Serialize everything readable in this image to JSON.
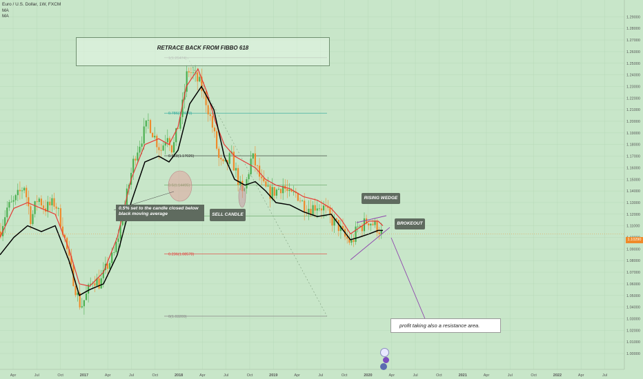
{
  "chart_data": {
    "type": "candlestick",
    "title": "Euro / U.S. Dollar, 1W, FXCM",
    "indicators": [
      "MA",
      "MA"
    ],
    "ylim": [
      0.995,
      1.297
    ],
    "y_ticks": [
      1.0,
      1.01,
      1.02,
      1.03,
      1.04,
      1.05,
      1.06,
      1.07,
      1.08,
      1.09,
      1.1,
      1.11,
      1.12,
      1.13,
      1.14,
      1.15,
      1.16,
      1.17,
      1.18,
      1.19,
      1.2,
      1.21,
      1.22,
      1.23,
      1.24,
      1.25,
      1.26,
      1.27,
      1.28,
      1.29
    ],
    "x_ticks": [
      "Apr",
      "Jul",
      "Oct",
      "2017",
      "Apr",
      "Jul",
      "Oct",
      "2018",
      "Apr",
      "Jul",
      "Oct",
      "2019",
      "Apr",
      "Jul",
      "Oct",
      "2020",
      "Apr",
      "Jul",
      "Oct",
      "2021",
      "Apr",
      "Jul",
      "Oct",
      "2022",
      "Apr",
      "Jul"
    ],
    "last_price": "1.10290",
    "price_path": [
      [
        0,
        1.105
      ],
      [
        10,
        1.125
      ],
      [
        20,
        1.13
      ],
      [
        35,
        1.145
      ],
      [
        45,
        1.115
      ],
      [
        55,
        1.135
      ],
      [
        65,
        1.125
      ],
      [
        80,
        1.13
      ],
      [
        90,
        1.11
      ],
      [
        100,
        1.08
      ],
      [
        110,
        1.055
      ],
      [
        117,
        1.04
      ],
      [
        125,
        1.05
      ],
      [
        135,
        1.065
      ],
      [
        145,
        1.06
      ],
      [
        155,
        1.075
      ],
      [
        165,
        1.085
      ],
      [
        175,
        1.11
      ],
      [
        185,
        1.14
      ],
      [
        195,
        1.17
      ],
      [
        205,
        1.185
      ],
      [
        215,
        1.2
      ],
      [
        225,
        1.185
      ],
      [
        233,
        1.175
      ],
      [
        243,
        1.19
      ],
      [
        250,
        1.175
      ],
      [
        258,
        1.195
      ],
      [
        265,
        1.215
      ],
      [
        272,
        1.245
      ],
      [
        280,
        1.24
      ],
      [
        290,
        1.232
      ],
      [
        300,
        1.215
      ],
      [
        310,
        1.19
      ],
      [
        318,
        1.165
      ],
      [
        325,
        1.16
      ],
      [
        335,
        1.17
      ],
      [
        345,
        1.15
      ],
      [
        352,
        1.135
      ],
      [
        358,
        1.15
      ],
      [
        365,
        1.17
      ],
      [
        372,
        1.16
      ],
      [
        380,
        1.145
      ],
      [
        390,
        1.138
      ],
      [
        400,
        1.14
      ],
      [
        410,
        1.145
      ],
      [
        420,
        1.135
      ],
      [
        430,
        1.138
      ],
      [
        440,
        1.128
      ],
      [
        450,
        1.125
      ],
      [
        460,
        1.128
      ],
      [
        470,
        1.125
      ],
      [
        480,
        1.115
      ],
      [
        490,
        1.11
      ],
      [
        500,
        1.1
      ],
      [
        510,
        1.095
      ],
      [
        518,
        1.108
      ],
      [
        525,
        1.11
      ],
      [
        533,
        1.115
      ],
      [
        540,
        1.112
      ],
      [
        548,
        1.108
      ],
      [
        553,
        1.103
      ]
    ],
    "ma_fast_path": [
      [
        0,
        1.1
      ],
      [
        20,
        1.125
      ],
      [
        40,
        1.13
      ],
      [
        60,
        1.125
      ],
      [
        80,
        1.12
      ],
      [
        100,
        1.09
      ],
      [
        115,
        1.06
      ],
      [
        130,
        1.058
      ],
      [
        150,
        1.07
      ],
      [
        170,
        1.1
      ],
      [
        190,
        1.15
      ],
      [
        210,
        1.18
      ],
      [
        230,
        1.185
      ],
      [
        245,
        1.18
      ],
      [
        258,
        1.195
      ],
      [
        270,
        1.23
      ],
      [
        287,
        1.245
      ],
      [
        300,
        1.225
      ],
      [
        312,
        1.2
      ],
      [
        325,
        1.18
      ],
      [
        340,
        1.17
      ],
      [
        355,
        1.165
      ],
      [
        370,
        1.16
      ],
      [
        385,
        1.15
      ],
      [
        400,
        1.145
      ],
      [
        420,
        1.142
      ],
      [
        440,
        1.135
      ],
      [
        460,
        1.132
      ],
      [
        480,
        1.125
      ],
      [
        495,
        1.115
      ],
      [
        508,
        1.103
      ],
      [
        520,
        1.108
      ],
      [
        535,
        1.114
      ],
      [
        548,
        1.114
      ],
      [
        555,
        1.11
      ]
    ],
    "ma_slow_path": [
      [
        0,
        1.085
      ],
      [
        20,
        1.1
      ],
      [
        40,
        1.11
      ],
      [
        60,
        1.105
      ],
      [
        80,
        1.11
      ],
      [
        100,
        1.08
      ],
      [
        115,
        1.05
      ],
      [
        130,
        1.055
      ],
      [
        150,
        1.06
      ],
      [
        170,
        1.085
      ],
      [
        190,
        1.13
      ],
      [
        210,
        1.165
      ],
      [
        230,
        1.17
      ],
      [
        245,
        1.165
      ],
      [
        258,
        1.175
      ],
      [
        275,
        1.215
      ],
      [
        292,
        1.23
      ],
      [
        310,
        1.21
      ],
      [
        325,
        1.17
      ],
      [
        340,
        1.15
      ],
      [
        355,
        1.145
      ],
      [
        370,
        1.148
      ],
      [
        385,
        1.14
      ],
      [
        400,
        1.13
      ],
      [
        420,
        1.128
      ],
      [
        440,
        1.122
      ],
      [
        460,
        1.118
      ],
      [
        480,
        1.12
      ],
      [
        495,
        1.108
      ],
      [
        508,
        1.098
      ],
      [
        520,
        1.1
      ],
      [
        535,
        1.103
      ],
      [
        548,
        1.106
      ],
      [
        555,
        1.106
      ]
    ],
    "fib_levels": [
      {
        "label": "1(1.25474)",
        "value": 1.2547,
        "color": "#888888"
      },
      {
        "label": "0.786(1.2070)",
        "value": 1.207,
        "color": "#26a69a"
      },
      {
        "label": "0.618(1.17026)",
        "value": 1.1703,
        "color": "#333333"
      },
      {
        "label": "0.5(1.14495)",
        "value": 1.145,
        "color": "#5fa25f"
      },
      {
        "label": "0.382(1.1185)",
        "value": 1.1185,
        "color": "#5fa25f"
      },
      {
        "label": "0.236(1.08578)",
        "value": 1.0858,
        "color": "#e53935"
      },
      {
        "label": "0(1.03209)",
        "value": 1.0321,
        "color": "#888888"
      }
    ]
  },
  "annotations": {
    "retrace_title": "RETRACE BACK FROM FIBBO 618",
    "ma_note": "0.5% set to the candle closed below black moving average",
    "sell_candle": "SELL CANDLE",
    "rising_wedge": "RISING WEDGE",
    "brokeout": "BROKEOUT",
    "profit_note": "profit taking also a resistance area."
  },
  "colors": {
    "background": "#c8e6c9",
    "candle_up": "#4caf50",
    "candle_down": "#ef8a2a",
    "ma_fast": "#e53935",
    "ma_slow": "#000000",
    "label_box": "#5f6b5f",
    "wedge": "#8e44ad"
  }
}
